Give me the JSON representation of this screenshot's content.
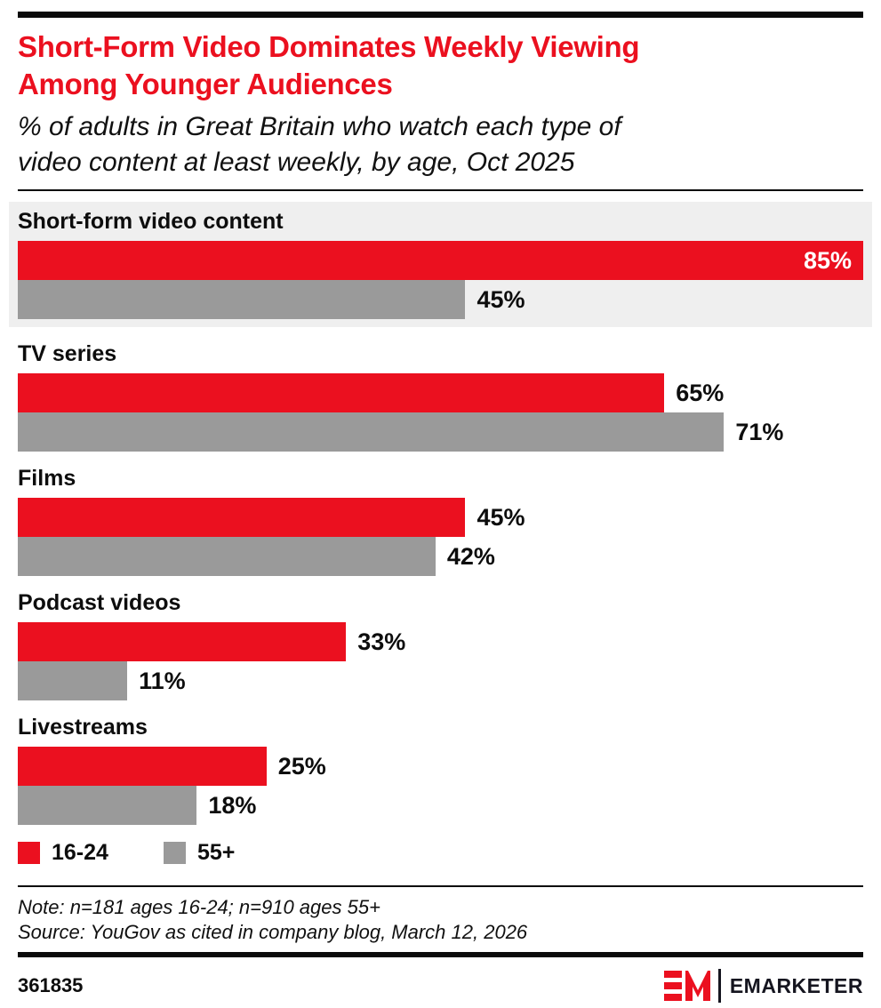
{
  "page": {
    "accent_red": "#eb101f",
    "gray": "#9a9a9a",
    "highlight_bg": "#efefef"
  },
  "header": {
    "title_lines": [
      "Short-Form Video Dominates Weekly Viewing",
      "Among Younger Audiences"
    ],
    "subtitle_lines": [
      "% of adults in Great Britain who watch each type of",
      "video content at least weekly, by age, Oct 2025"
    ]
  },
  "chart_data": {
    "type": "bar",
    "orientation": "horizontal",
    "title": "Short-Form Video Dominates Weekly Viewing Among Younger Audiences",
    "subtitle": "% of adults in Great Britain who watch each type of video content at least weekly, by age, Oct 2025",
    "categories": [
      "Short-form video content",
      "TV series",
      "Films",
      "Podcast videos",
      "Livestreams"
    ],
    "series": [
      {
        "name": "16-24",
        "color": "#eb101f",
        "values": [
          85,
          65,
          45,
          33,
          25
        ]
      },
      {
        "name": "55+",
        "color": "#9a9a9a",
        "values": [
          45,
          71,
          42,
          11,
          18
        ]
      }
    ],
    "value_suffix": "%",
    "xmax": 85,
    "highlighted_category": "Short-form video content",
    "legend_position": "bottom",
    "grid": false
  },
  "legend": {
    "items": [
      {
        "label": "16-24",
        "color": "#eb101f"
      },
      {
        "label": "55+",
        "color": "#9a9a9a"
      }
    ]
  },
  "footer": {
    "note": "Note: n=181 ages 16-24; n=910 ages 55+",
    "source": "Source: YouGov as cited in company blog, March 12, 2026",
    "chart_id": "361835",
    "brand_mark": "EM",
    "brand_name": "EMARKETER"
  }
}
